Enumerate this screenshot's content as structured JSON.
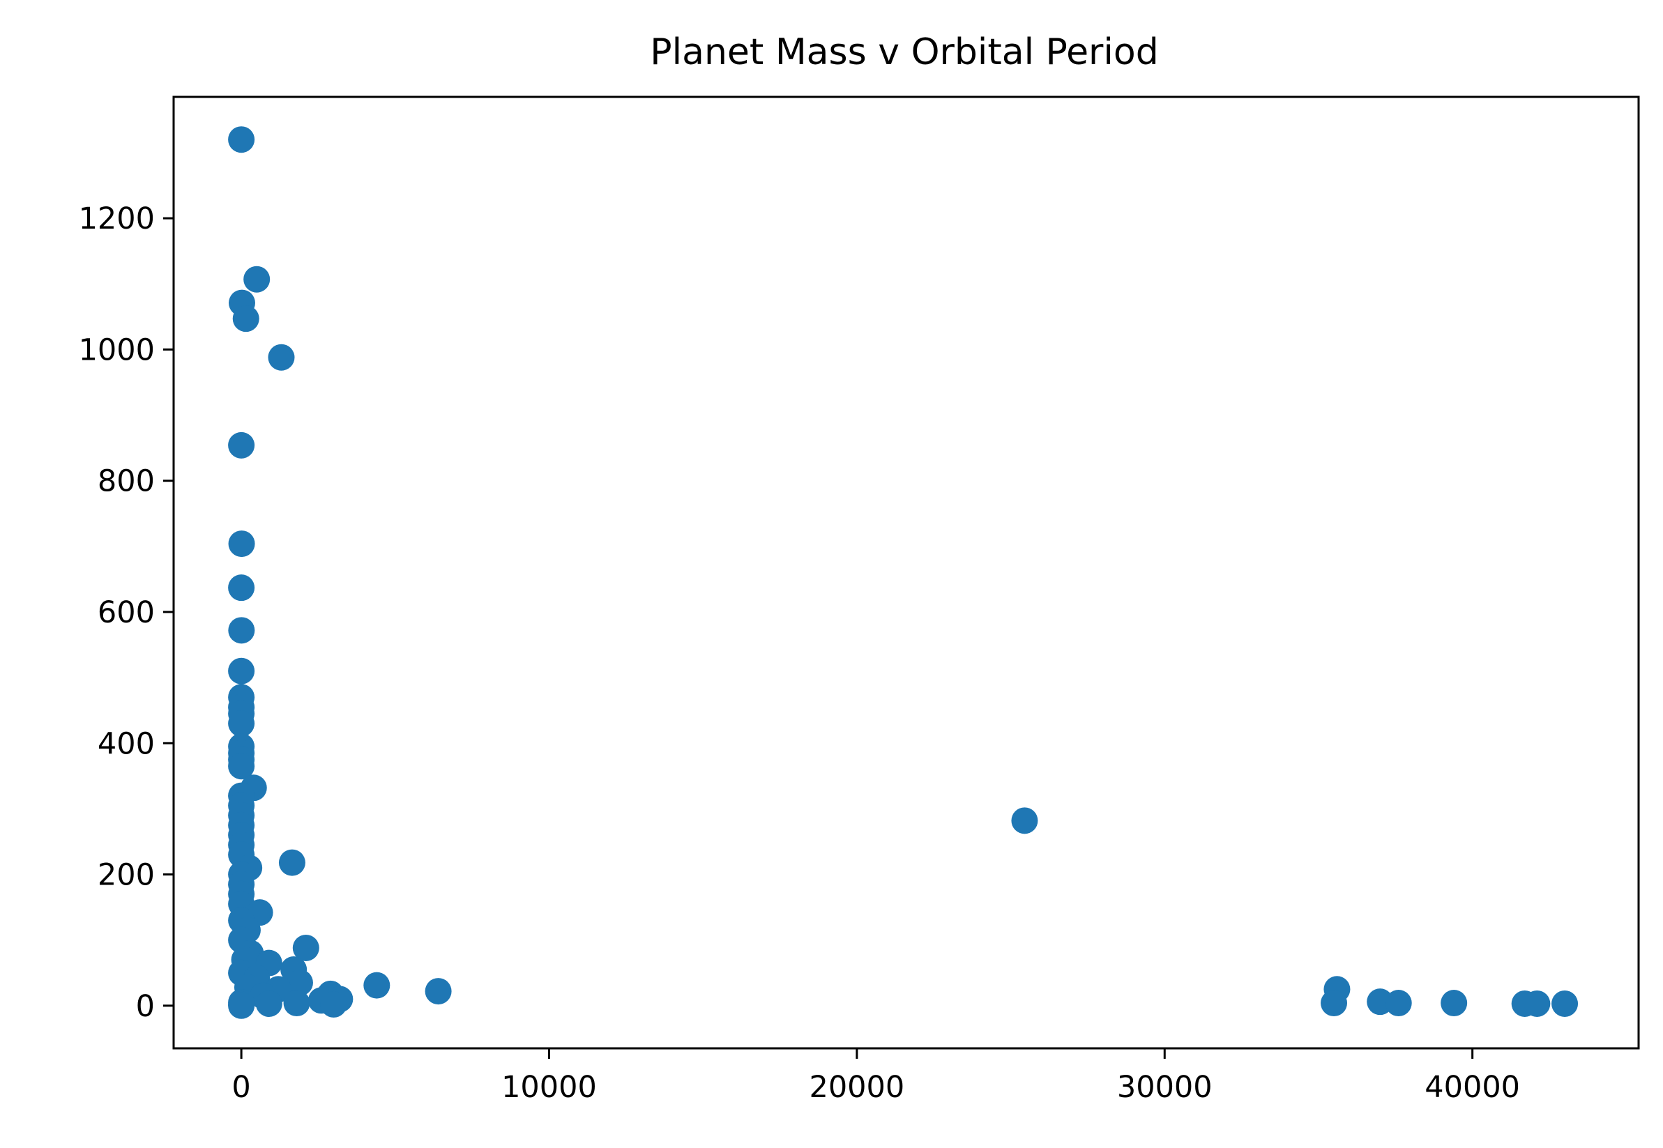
{
  "chart_data": {
    "type": "scatter",
    "title": "Planet Mass v Orbital Period",
    "xlabel": "",
    "ylabel": "",
    "xlim": [
      -2200,
      45400
    ],
    "ylim": [
      -65,
      1385
    ],
    "xticks": [
      0,
      10000,
      20000,
      30000,
      40000
    ],
    "yticks": [
      0,
      200,
      400,
      600,
      800,
      1000,
      1200
    ],
    "xtick_labels": [
      "0",
      "10000",
      "20000",
      "30000",
      "40000"
    ],
    "ytick_labels": [
      "0",
      "200",
      "400",
      "600",
      "800",
      "1000",
      "1200"
    ],
    "grid": false,
    "legend": "none",
    "marker_color": "#1f77b4",
    "series": [
      {
        "points": [
          [
            0,
            1320
          ],
          [
            500,
            1107
          ],
          [
            20,
            1071
          ],
          [
            150,
            1047
          ],
          [
            1300,
            988
          ],
          [
            0,
            854
          ],
          [
            10,
            704
          ],
          [
            0,
            637
          ],
          [
            5,
            572
          ],
          [
            0,
            510
          ],
          [
            0,
            470
          ],
          [
            0,
            455
          ],
          [
            0,
            445
          ],
          [
            0,
            430
          ],
          [
            0,
            395
          ],
          [
            0,
            385
          ],
          [
            0,
            375
          ],
          [
            0,
            365
          ],
          [
            400,
            332
          ],
          [
            0,
            320
          ],
          [
            0,
            305
          ],
          [
            0,
            290
          ],
          [
            0,
            275
          ],
          [
            0,
            260
          ],
          [
            0,
            245
          ],
          [
            0,
            230
          ],
          [
            1650,
            218
          ],
          [
            250,
            210
          ],
          [
            0,
            200
          ],
          [
            0,
            185
          ],
          [
            0,
            170
          ],
          [
            0,
            155
          ],
          [
            600,
            142
          ],
          [
            0,
            130
          ],
          [
            200,
            115
          ],
          [
            0,
            100
          ],
          [
            2100,
            88
          ],
          [
            300,
            80
          ],
          [
            100,
            70
          ],
          [
            900,
            65
          ],
          [
            1700,
            55
          ],
          [
            0,
            50
          ],
          [
            500,
            42
          ],
          [
            1900,
            35
          ],
          [
            4400,
            31
          ],
          [
            200,
            28
          ],
          [
            1200,
            25
          ],
          [
            6400,
            22
          ],
          [
            2900,
            18
          ],
          [
            700,
            15
          ],
          [
            3200,
            10
          ],
          [
            2600,
            8
          ],
          [
            0,
            5
          ],
          [
            1800,
            4
          ],
          [
            900,
            3
          ],
          [
            3000,
            2
          ],
          [
            0,
            2
          ],
          [
            0,
            0
          ],
          [
            25450,
            282
          ],
          [
            35600,
            25
          ],
          [
            35500,
            4
          ],
          [
            37000,
            6
          ],
          [
            37600,
            4
          ],
          [
            39400,
            4
          ],
          [
            41700,
            3
          ],
          [
            42100,
            3
          ],
          [
            43000,
            3
          ]
        ]
      }
    ]
  }
}
